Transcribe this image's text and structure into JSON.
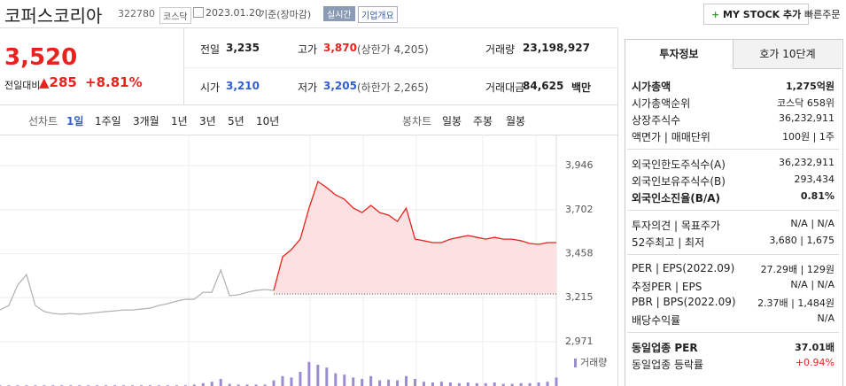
{
  "header": {
    "name": "코퍼스코리아",
    "code": "322780",
    "market": "코스닥",
    "date": "2023.01.20",
    "basis": "기준(장마감)",
    "realtime": "실시간",
    "overview": "기업개요",
    "mystock": "MY STOCK 추가",
    "quick_order": "빠른주문"
  },
  "price": {
    "current": "3,520",
    "change_label": "전일대비",
    "change": "285",
    "rate": "+8.81%"
  },
  "stats": [
    {
      "label": "전일",
      "value": "3,235"
    },
    {
      "label": "고가",
      "value": "3,870",
      "note": "(상한가 4,205)"
    },
    {
      "label": "거래량",
      "value": "23,198,927"
    },
    {
      "label": "시가",
      "value": "3,210"
    },
    {
      "label": "저가",
      "value": "3,205",
      "note": "(하한가 2,265)"
    },
    {
      "label": "거래대금",
      "value": "84,625",
      "unit": "백만"
    }
  ],
  "chart_tabs": {
    "line_label": "선차트",
    "line": [
      "1일",
      "1주일",
      "3개월",
      "1년",
      "3년",
      "5년",
      "10년"
    ],
    "candle_label": "봉차트",
    "candle": [
      "일봉",
      "주봉",
      "월봉"
    ]
  },
  "chart_data": {
    "type": "line",
    "ylim": [
      2927,
      4103
    ],
    "yticks": [
      {
        "value": 3946,
        "label": "3,946"
      },
      {
        "value": 3702,
        "label": "3,702"
      },
      {
        "value": 3458,
        "label": "3,458"
      },
      {
        "value": 3215,
        "label": "3,215"
      },
      {
        "value": 2971,
        "label": "2,971"
      }
    ],
    "reference_line": 3235,
    "series": [
      {
        "color": "#b4b4b4",
        "values": [
          3147,
          3172,
          3285,
          3343,
          3172,
          3138,
          3128,
          3123,
          3128,
          3123,
          3128,
          3133,
          3138,
          3142,
          3147,
          3147,
          3152,
          3157,
          3172,
          3182,
          3196,
          3206,
          3206,
          3245,
          3245,
          3368,
          3226,
          3231,
          3245,
          3255,
          3260,
          3255,
          null,
          null,
          null,
          null,
          null,
          null,
          null,
          null,
          null,
          null,
          null,
          null,
          null,
          null,
          null,
          null,
          null,
          null,
          null,
          null,
          null,
          null,
          null,
          null,
          null,
          null,
          null,
          null,
          null,
          null,
          null,
          null
        ]
      },
      {
        "color": "#e8231e",
        "fill": "#fbe1e1",
        "values": [
          null,
          null,
          null,
          null,
          null,
          null,
          null,
          null,
          null,
          null,
          null,
          null,
          null,
          null,
          null,
          null,
          null,
          null,
          null,
          null,
          null,
          null,
          null,
          null,
          null,
          null,
          null,
          null,
          null,
          null,
          null,
          3255,
          3441,
          3481,
          3539,
          3711,
          3858,
          3824,
          3784,
          3760,
          3711,
          3686,
          3726,
          3686,
          3672,
          3637,
          3711,
          3539,
          3530,
          3520,
          3520,
          3539,
          3549,
          3559,
          3549,
          3539,
          3549,
          3539,
          3539,
          3530,
          3515,
          3510,
          3520,
          3520
        ]
      }
    ],
    "volume": {
      "label": "거래량",
      "color": "#9b8bd0",
      "values": [
        1,
        1,
        1,
        1,
        1,
        1,
        1,
        1,
        1,
        1,
        1,
        1,
        1,
        1,
        1,
        1,
        1,
        1,
        1,
        1,
        1,
        1,
        2,
        4,
        6,
        10,
        3,
        2,
        2,
        2,
        2,
        8,
        14,
        12,
        20,
        34,
        30,
        26,
        18,
        16,
        12,
        10,
        14,
        8,
        9,
        8,
        14,
        10,
        6,
        5,
        6,
        5,
        4,
        5,
        4,
        4,
        5,
        3,
        3,
        4,
        4,
        5,
        6,
        12
      ]
    }
  },
  "invest": {
    "tabs": [
      "투자정보",
      "호가 10단계"
    ],
    "groups": [
      [
        {
          "label": "시가총액",
          "value": "1,275억원"
        },
        {
          "label": "시가총액순위",
          "value": "코스닥 658위"
        },
        {
          "label": "상장주식수",
          "value": "36,232,911"
        },
        {
          "label": "액면가 | 매매단위",
          "value": "100원 | 1주"
        }
      ],
      [
        {
          "label": "외국인한도주식수(A)",
          "value": "36,232,911"
        },
        {
          "label": "외국인보유주식수(B)",
          "value": "293,434"
        },
        {
          "label": "외국인소진율(B/A)",
          "value": "0.81%"
        }
      ],
      [
        {
          "label": "투자의견 | 목표주가",
          "value": "N/A | N/A"
        },
        {
          "label": "52주최고 | 최저",
          "value": "3,680 | 1,675"
        }
      ],
      [
        {
          "label": "PER | EPS(2022.09)",
          "value": "27.29배 | 129원"
        },
        {
          "label": "추정PER | EPS",
          "value": "N/A | N/A"
        },
        {
          "label": "PBR | BPS(2022.09)",
          "value": "2.37배 | 1,484원"
        },
        {
          "label": "배당수익률",
          "value": "N/A"
        }
      ],
      [
        {
          "label": "동일업종 PER",
          "value": "37.01배"
        },
        {
          "label": "동일업종 등락률",
          "value": "+0.94%"
        }
      ]
    ]
  }
}
